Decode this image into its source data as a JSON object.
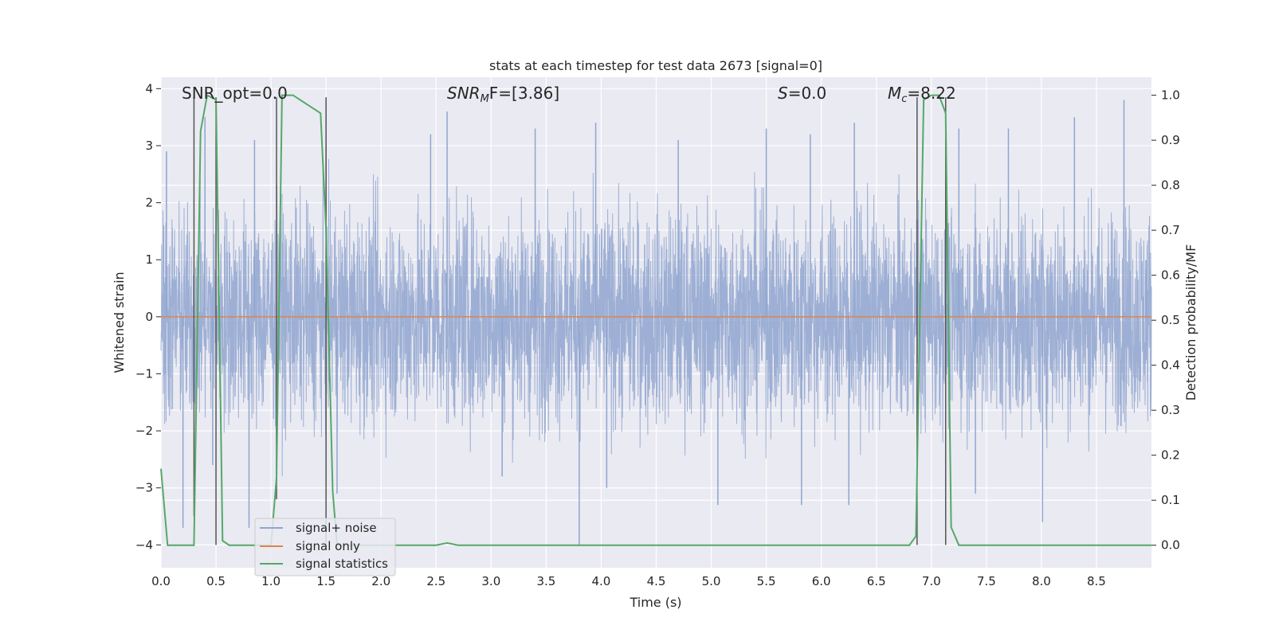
{
  "chart_data": {
    "type": "line",
    "title": "stats at each timestep for test data 2673 [signal=0]",
    "xlabel": "Time (s)",
    "ylabel": "Whitened strain",
    "y2label": "Detection probability/MF",
    "xlim": [
      0.0,
      9.0
    ],
    "ylim": [
      -4.4,
      4.2
    ],
    "y2lim": [
      -0.05,
      1.04
    ],
    "x_ticks": [
      0.0,
      0.5,
      1.0,
      1.5,
      2.0,
      2.5,
      3.0,
      3.5,
      4.0,
      4.5,
      5.0,
      5.5,
      6.0,
      6.5,
      7.0,
      7.5,
      8.0,
      8.5
    ],
    "x_tick_labels": [
      "0.0",
      "0.5",
      "1.0",
      "1.5",
      "2.0",
      "2.5",
      "3.0",
      "3.5",
      "4.0",
      "4.5",
      "5.0",
      "5.5",
      "6.0",
      "6.5",
      "7.0",
      "7.5",
      "8.0",
      "8.5"
    ],
    "y_ticks": [
      -4,
      -3,
      -2,
      -1,
      0,
      1,
      2,
      3,
      4
    ],
    "y_tick_labels": [
      "−4",
      "−3",
      "−2",
      "−1",
      "0",
      "1",
      "2",
      "3",
      "4"
    ],
    "y2_ticks": [
      0.0,
      0.1,
      0.2,
      0.3,
      0.4,
      0.5,
      0.6,
      0.7,
      0.8,
      0.9,
      1.0
    ],
    "y2_tick_labels": [
      "0.0",
      "0.1",
      "0.2",
      "0.3",
      "0.4",
      "0.5",
      "0.6",
      "0.7",
      "0.8",
      "0.9",
      "1.0"
    ],
    "grid": true,
    "legend_position": "lower-left",
    "annotations": {
      "snr_opt": "SNR_opt=0.0",
      "snr_mf_main": "SNR",
      "snr_mf_sub": "M",
      "snr_mf_rest": "F=[3.86]",
      "s_main": "S",
      "s_rest": "=0.0",
      "mc_main": "M",
      "mc_sub": "c",
      "mc_rest": "=8.22"
    },
    "series": [
      {
        "name": "signal+ noise",
        "color": "#8fa5cf",
        "note_envelope": "noise, roughly within ±2 with peaks near ±3.8",
        "peak_points": [
          [
            0.05,
            2.9
          ],
          [
            0.2,
            -3.7
          ],
          [
            0.4,
            3.5
          ],
          [
            0.47,
            -2.6
          ],
          [
            0.8,
            -3.7
          ],
          [
            0.85,
            3.1
          ],
          [
            1.05,
            -2.9
          ],
          [
            1.5,
            3.0
          ],
          [
            1.6,
            -3.1
          ],
          [
            2.45,
            3.2
          ],
          [
            2.6,
            3.6
          ],
          [
            3.1,
            -2.8
          ],
          [
            3.4,
            3.3
          ],
          [
            3.8,
            -4.0
          ],
          [
            3.95,
            3.4
          ],
          [
            4.05,
            -3.0
          ],
          [
            4.7,
            3.1
          ],
          [
            5.06,
            -3.3
          ],
          [
            5.5,
            3.3
          ],
          [
            5.82,
            -3.3
          ],
          [
            5.9,
            3.2
          ],
          [
            6.25,
            -3.3
          ],
          [
            6.3,
            3.4
          ],
          [
            7.25,
            3.3
          ],
          [
            7.4,
            -3.1
          ],
          [
            7.7,
            3.3
          ],
          [
            8.01,
            -3.6
          ],
          [
            8.3,
            3.5
          ],
          [
            8.75,
            3.8
          ],
          [
            8.95,
            1.0
          ]
        ]
      },
      {
        "name": "signal only",
        "color": "#dd8452",
        "x": [
          0.0,
          9.0
        ],
        "y": [
          0.0,
          0.0
        ]
      },
      {
        "name": "signal statistics",
        "color": "#55a868",
        "axis": "right",
        "x": [
          0.0,
          0.06,
          0.12,
          0.2,
          0.3,
          0.36,
          0.42,
          0.5,
          0.56,
          0.62,
          0.7,
          1.0,
          1.05,
          1.1,
          1.2,
          1.45,
          1.5,
          1.56,
          1.6,
          2.5,
          2.6,
          2.7,
          3.0,
          6.8,
          6.86,
          6.93,
          7.0,
          7.07,
          7.13,
          7.18,
          7.25,
          9.0
        ],
        "y": [
          0.17,
          0.0,
          0.0,
          0.0,
          0.0,
          0.92,
          1.0,
          0.99,
          0.01,
          0.0,
          0.0,
          0.0,
          0.15,
          1.0,
          1.0,
          0.96,
          0.7,
          0.12,
          0.0,
          0.0,
          0.005,
          0.0,
          0.0,
          0.0,
          0.02,
          0.99,
          1.0,
          1.0,
          0.96,
          0.04,
          0.0,
          0.0
        ]
      }
    ],
    "vertical_markers": [
      {
        "x": 0.3,
        "ymin": -3.5,
        "ymax": 3.85
      },
      {
        "x": 0.5,
        "ymin": -4.0,
        "ymax": 3.85
      },
      {
        "x": 1.05,
        "ymin": -3.2,
        "ymax": 3.85
      },
      {
        "x": 1.5,
        "ymin": -4.0,
        "ymax": 3.85
      },
      {
        "x": 6.87,
        "ymin": -4.0,
        "ymax": 3.85
      },
      {
        "x": 7.13,
        "ymin": -4.0,
        "ymax": 3.85
      }
    ],
    "right_axis_gridlines": [
      0.1,
      0.3,
      0.4,
      0.5,
      0.6,
      0.7,
      0.8
    ]
  }
}
